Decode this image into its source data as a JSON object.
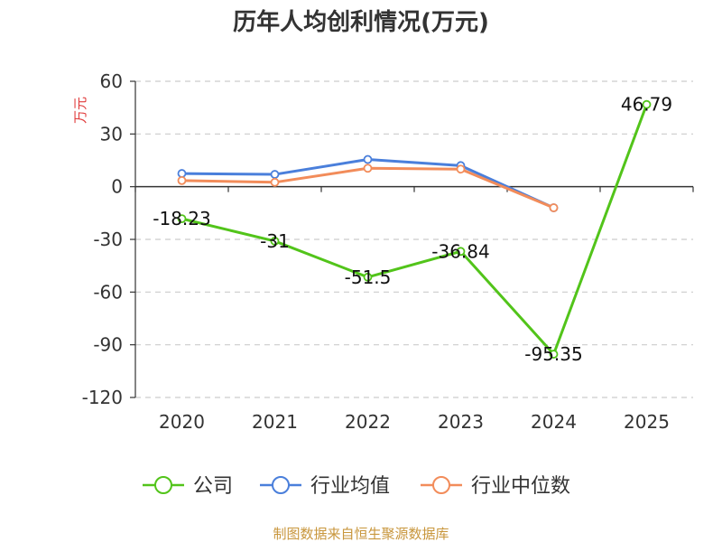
{
  "chart_data": {
    "type": "line",
    "title": "历年人均创利情况(万元)",
    "ylabel": "万元",
    "categories": [
      "2020",
      "2021",
      "2022",
      "2023",
      "2024",
      "2025"
    ],
    "ylim": [
      -120,
      60
    ],
    "yticks": [
      60,
      30,
      0,
      -30,
      -60,
      -90,
      -120
    ],
    "grid": true,
    "legend_position": "bottom",
    "series": [
      {
        "name": "公司",
        "color": "#52c41a",
        "values": [
          -18.23,
          -31,
          -51.5,
          -36.84,
          -95.35,
          46.79
        ],
        "labels": [
          "-18.23",
          "-31",
          "-51.5",
          "-36.84",
          "-95.35",
          "46.79"
        ]
      },
      {
        "name": "行业均值",
        "color": "#4a7fdb",
        "values": [
          7.5,
          7,
          15.5,
          12,
          -12,
          null
        ]
      },
      {
        "name": "行业中位数",
        "color": "#f28c5a",
        "values": [
          3.5,
          2.5,
          10.5,
          10,
          -12,
          null
        ]
      }
    ],
    "source": "制图数据来自恒生聚源数据库",
    "colors": {
      "ylabel": "#e03c3c",
      "source": "#c8963c",
      "grid": "#cccccc",
      "axis": "#333333"
    }
  }
}
